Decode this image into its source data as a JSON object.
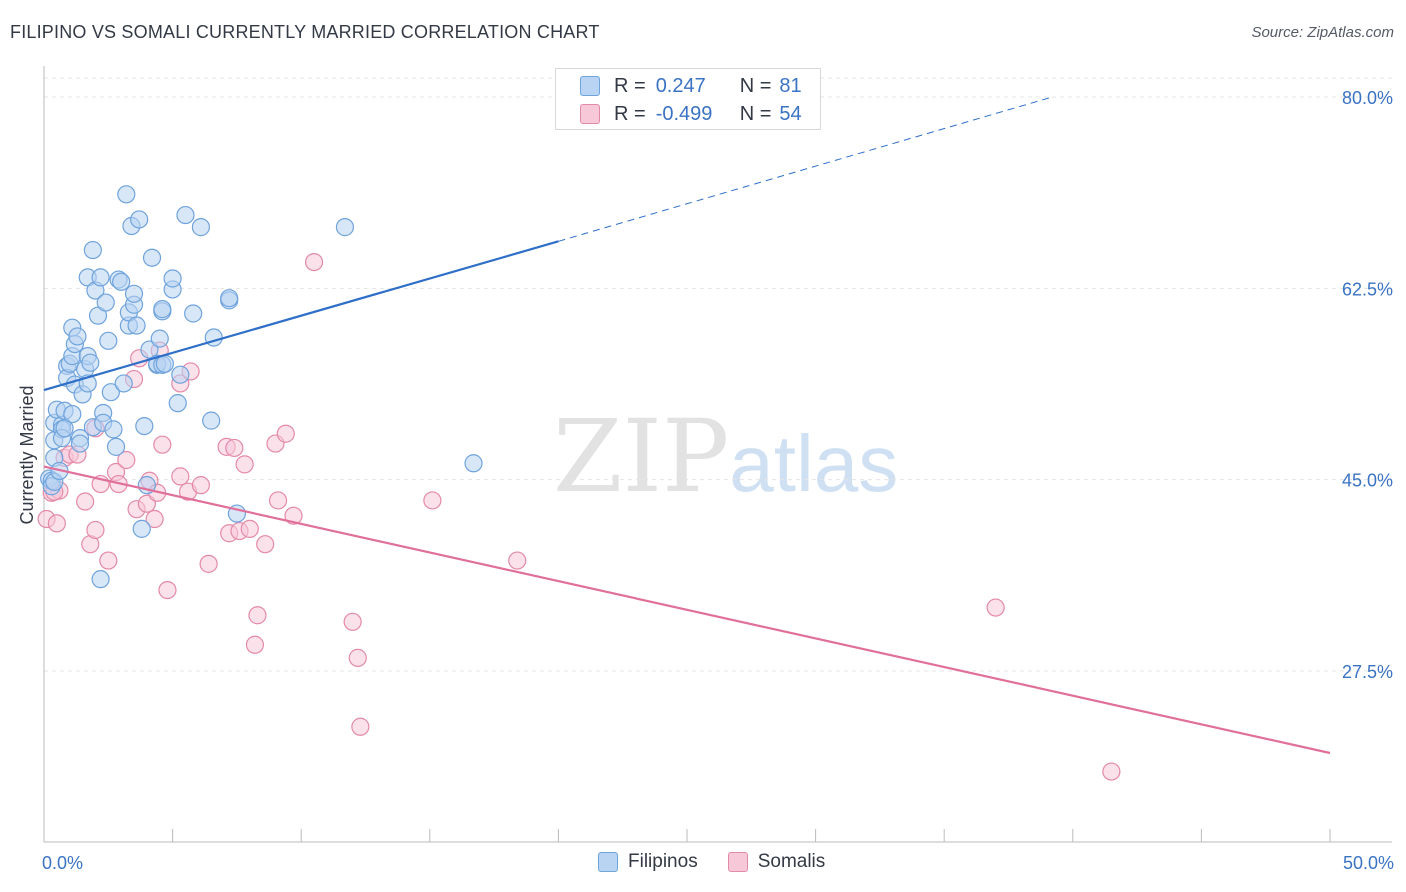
{
  "title": "FILIPINO VS SOMALI CURRENTLY MARRIED CORRELATION CHART",
  "source": "Source: ZipAtlas.com",
  "watermark": {
    "zip": "ZIP",
    "atlas": "atlas"
  },
  "legend_top": {
    "rows": [
      {
        "r_label": "R =",
        "r_value": "0.247",
        "n_label": "N =",
        "n_value": "81"
      },
      {
        "r_label": "R =",
        "r_value": "-0.499",
        "n_label": "N =",
        "n_value": "54"
      }
    ]
  },
  "legend_bottom": {
    "filipinos": "Filipinos",
    "somalis": "Somalis"
  },
  "colors": {
    "blue_fill": "#b8d4f2",
    "blue_stroke": "#6fa3dc",
    "blue_line": "#2f6fc8",
    "pink_fill": "#f7c9d8",
    "pink_stroke": "#e48aa8",
    "pink_line": "#e07099",
    "axis_text": "#3b73c4",
    "grid": "#e4e4e4"
  },
  "chart_data": {
    "type": "scatter",
    "title": "FILIPINO VS SOMALI CURRENTLY MARRIED CORRELATION CHART",
    "xlabel": "",
    "ylabel": "Currently Married",
    "xlim": [
      0,
      50
    ],
    "ylim": [
      10,
      84
    ],
    "x_tick_labels": [
      "0.0%",
      "50.0%"
    ],
    "y_ticks": [
      27.5,
      45.0,
      62.5,
      80.0
    ],
    "y_tick_labels": [
      "27.5%",
      "45.0%",
      "62.5%",
      "80.0%"
    ],
    "grid": true,
    "legend_placement": "top-center",
    "series": [
      {
        "name": "Filipinos",
        "color": "#6fa3dc",
        "points": [
          [
            0.2,
            45.1
          ],
          [
            0.3,
            44.9
          ],
          [
            0.3,
            44.4
          ],
          [
            0.4,
            47.0
          ],
          [
            0.4,
            48.6
          ],
          [
            0.4,
            50.2
          ],
          [
            0.4,
            44.8
          ],
          [
            0.5,
            51.4
          ],
          [
            0.6,
            45.8
          ],
          [
            0.7,
            50.0
          ],
          [
            0.7,
            49.6
          ],
          [
            0.7,
            48.8
          ],
          [
            0.8,
            49.7
          ],
          [
            0.8,
            51.3
          ],
          [
            0.9,
            55.4
          ],
          [
            0.9,
            54.3
          ],
          [
            1.0,
            55.6
          ],
          [
            1.1,
            56.3
          ],
          [
            1.1,
            58.9
          ],
          [
            1.1,
            51.0
          ],
          [
            1.2,
            53.7
          ],
          [
            1.2,
            57.4
          ],
          [
            1.3,
            58.1
          ],
          [
            1.4,
            48.8
          ],
          [
            1.4,
            48.3
          ],
          [
            1.5,
            52.8
          ],
          [
            1.6,
            55.1
          ],
          [
            1.7,
            56.3
          ],
          [
            1.7,
            63.5
          ],
          [
            1.7,
            53.8
          ],
          [
            1.8,
            55.7
          ],
          [
            1.9,
            49.8
          ],
          [
            1.9,
            66.0
          ],
          [
            2.0,
            62.3
          ],
          [
            2.1,
            60.0
          ],
          [
            2.2,
            63.5
          ],
          [
            2.3,
            51.1
          ],
          [
            2.3,
            50.2
          ],
          [
            2.4,
            61.2
          ],
          [
            2.5,
            57.7
          ],
          [
            2.6,
            53.0
          ],
          [
            2.7,
            49.6
          ],
          [
            2.8,
            48.0
          ],
          [
            2.9,
            63.3
          ],
          [
            3.0,
            63.1
          ],
          [
            3.1,
            53.8
          ],
          [
            3.2,
            71.1
          ],
          [
            3.3,
            59.1
          ],
          [
            3.3,
            60.3
          ],
          [
            3.4,
            68.2
          ],
          [
            3.5,
            61.0
          ],
          [
            3.5,
            62.0
          ],
          [
            3.6,
            59.1
          ],
          [
            3.7,
            68.8
          ],
          [
            3.8,
            40.5
          ],
          [
            3.9,
            49.9
          ],
          [
            4.0,
            44.5
          ],
          [
            4.1,
            56.9
          ],
          [
            4.2,
            65.3
          ],
          [
            4.4,
            55.5
          ],
          [
            4.4,
            55.6
          ],
          [
            4.5,
            57.9
          ],
          [
            4.6,
            55.5
          ],
          [
            4.6,
            60.4
          ],
          [
            4.6,
            60.6
          ],
          [
            4.7,
            55.6
          ],
          [
            5.0,
            62.4
          ],
          [
            5.0,
            63.4
          ],
          [
            5.2,
            52.0
          ],
          [
            5.3,
            54.6
          ],
          [
            5.5,
            69.2
          ],
          [
            5.8,
            60.2
          ],
          [
            6.1,
            68.1
          ],
          [
            6.5,
            50.4
          ],
          [
            6.6,
            58.0
          ],
          [
            7.2,
            61.4
          ],
          [
            7.2,
            61.6
          ],
          [
            7.5,
            41.9
          ],
          [
            11.7,
            68.1
          ],
          [
            16.7,
            46.5
          ],
          [
            2.2,
            35.9
          ]
        ]
      },
      {
        "name": "Somalis",
        "color": "#e48aa8",
        "points": [
          [
            0.1,
            41.4
          ],
          [
            0.3,
            43.8
          ],
          [
            0.5,
            41.0
          ],
          [
            0.6,
            44.0
          ],
          [
            0.8,
            47.0
          ],
          [
            1.0,
            47.3
          ],
          [
            1.3,
            47.3
          ],
          [
            1.6,
            43.0
          ],
          [
            1.8,
            39.1
          ],
          [
            2.0,
            40.4
          ],
          [
            2.0,
            49.7
          ],
          [
            2.2,
            44.6
          ],
          [
            2.5,
            37.6
          ],
          [
            2.8,
            45.7
          ],
          [
            2.9,
            44.6
          ],
          [
            3.2,
            46.8
          ],
          [
            3.5,
            54.2
          ],
          [
            3.6,
            42.3
          ],
          [
            3.7,
            56.1
          ],
          [
            4.0,
            42.8
          ],
          [
            4.1,
            44.9
          ],
          [
            4.3,
            41.4
          ],
          [
            4.4,
            43.8
          ],
          [
            4.5,
            56.8
          ],
          [
            4.6,
            48.2
          ],
          [
            4.8,
            34.9
          ],
          [
            5.3,
            53.8
          ],
          [
            5.3,
            45.3
          ],
          [
            5.6,
            43.9
          ],
          [
            5.7,
            54.9
          ],
          [
            6.1,
            44.5
          ],
          [
            6.4,
            37.3
          ],
          [
            7.1,
            48.0
          ],
          [
            7.2,
            40.1
          ],
          [
            7.4,
            47.9
          ],
          [
            7.6,
            40.3
          ],
          [
            7.8,
            46.4
          ],
          [
            8.0,
            40.5
          ],
          [
            8.2,
            29.9
          ],
          [
            8.3,
            32.6
          ],
          [
            8.6,
            39.1
          ],
          [
            9.0,
            48.3
          ],
          [
            9.1,
            43.1
          ],
          [
            9.4,
            49.2
          ],
          [
            9.7,
            41.7
          ],
          [
            10.5,
            64.9
          ],
          [
            12.0,
            32.0
          ],
          [
            12.2,
            28.7
          ],
          [
            12.3,
            22.4
          ],
          [
            15.1,
            43.1
          ],
          [
            18.4,
            37.6
          ],
          [
            37.0,
            33.3
          ],
          [
            41.5,
            18.3
          ],
          [
            0.4,
            43.9
          ]
        ]
      }
    ],
    "trend_lines": [
      {
        "series": "Filipinos",
        "x0": 0,
        "y0": 53.2,
        "x1": 20,
        "y1": 66.8,
        "dashed_to": {
          "x": 39.2,
          "y": 80.0
        }
      },
      {
        "series": "Somalis",
        "x0": 0,
        "y0": 46.2,
        "x1": 50,
        "y1": 20.0
      }
    ]
  }
}
